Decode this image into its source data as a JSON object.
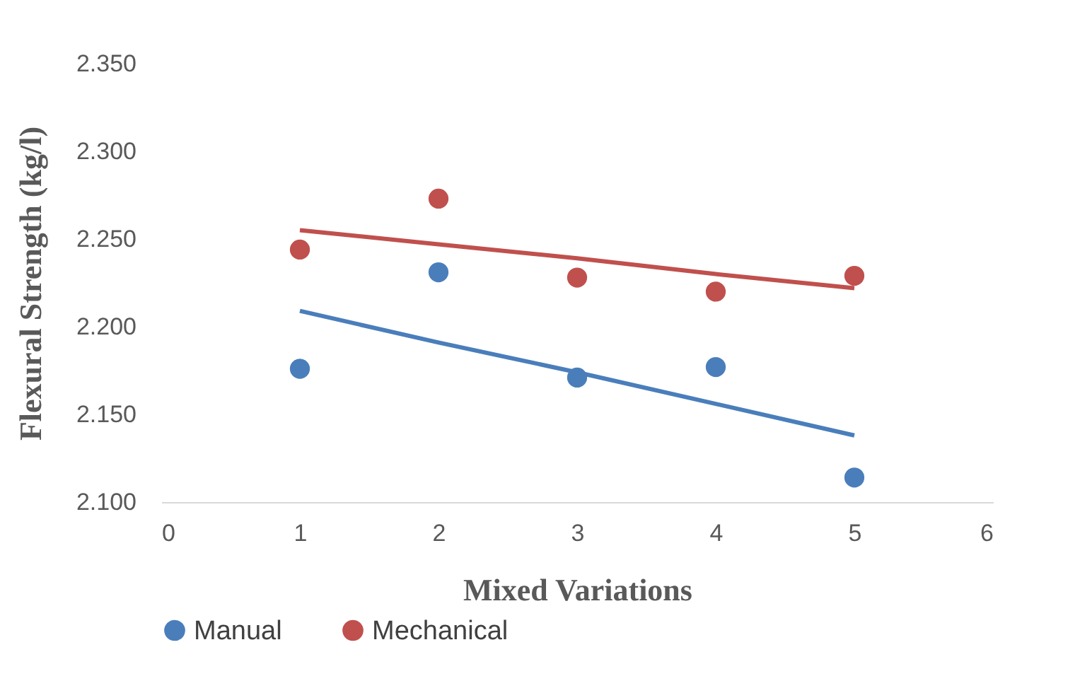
{
  "chart_data": {
    "type": "scatter",
    "xlabel": "Mixed Variations",
    "ylabel": "Flexural Strength (kg/l)",
    "xlim": [
      0,
      6
    ],
    "xticks": [
      0,
      1,
      2,
      3,
      4,
      5,
      6
    ],
    "ylim": [
      2.1,
      2.35
    ],
    "yticks": [
      {
        "value": 2.1,
        "label": "2.100"
      },
      {
        "value": 2.15,
        "label": "2.150"
      },
      {
        "value": 2.2,
        "label": "2.200"
      },
      {
        "value": 2.25,
        "label": "2.250"
      },
      {
        "value": 2.3,
        "label": "2.300"
      },
      {
        "value": 2.35,
        "label": "2.350"
      }
    ],
    "x": [
      1,
      2,
      3,
      4,
      5
    ],
    "series": [
      {
        "name": "Manual",
        "color": "#4a7ebb",
        "values": [
          2.176,
          2.231,
          2.171,
          2.177,
          2.114
        ]
      },
      {
        "name": "Mechanical",
        "color": "#c0504d",
        "values": [
          2.244,
          2.273,
          2.228,
          2.22,
          2.229
        ]
      },
      {
        "type": "line",
        "color": "#4a7ebb",
        "marker": "none",
        "values": [
          2.209,
          2.191,
          2.174,
          2.156,
          2.138
        ]
      },
      {
        "type": "line",
        "color": "#c0504d",
        "marker": "none",
        "values": [
          2.255,
          2.247,
          2.239,
          2.23,
          2.222
        ]
      }
    ],
    "marker": "circle",
    "grid": false,
    "legend": "bottom"
  }
}
